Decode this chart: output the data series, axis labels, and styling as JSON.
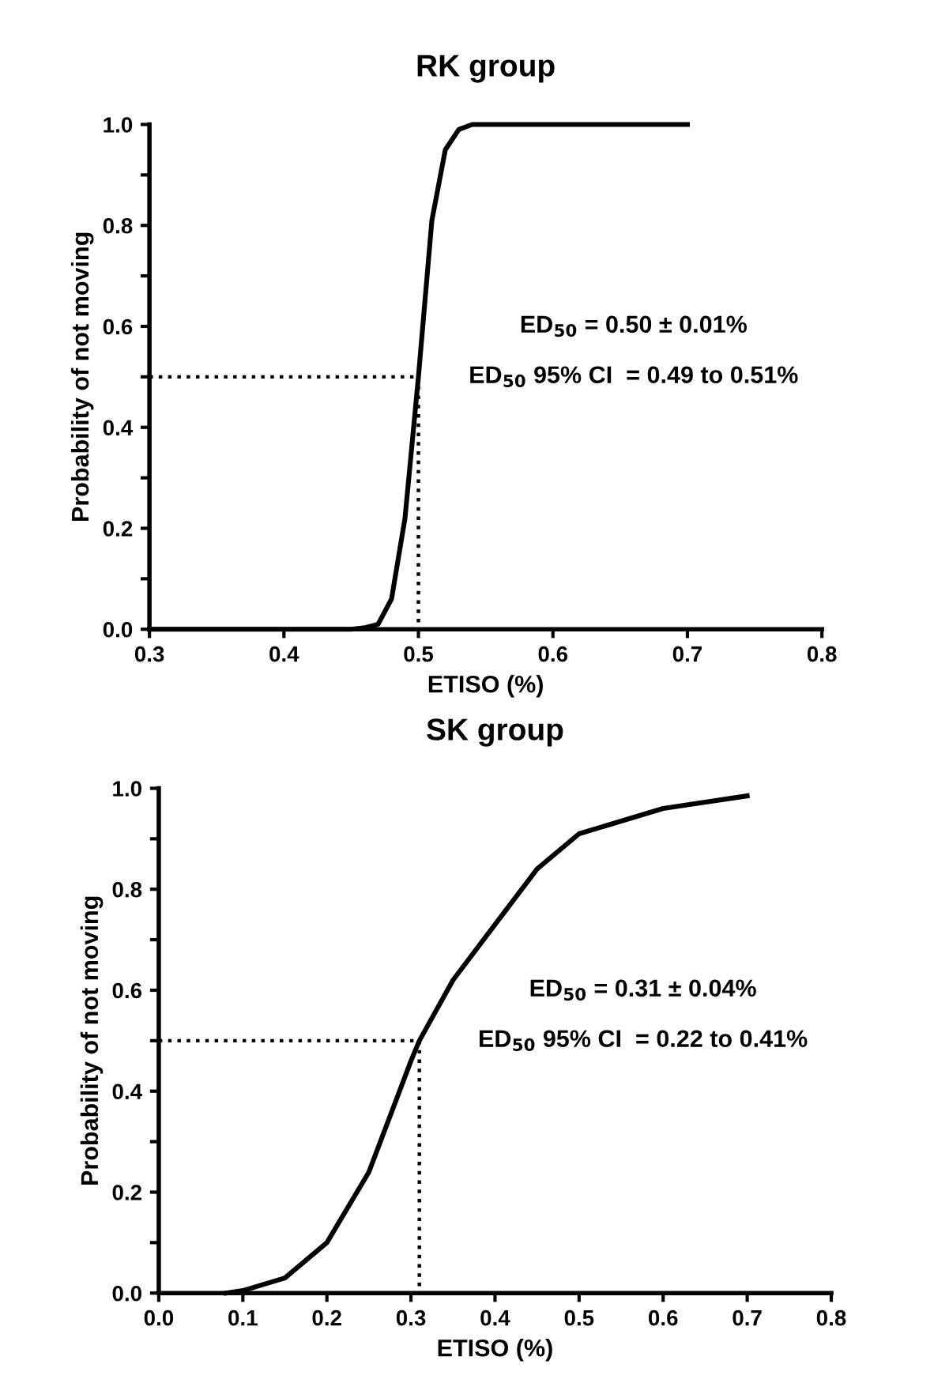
{
  "chart_data": [
    {
      "type": "line",
      "title": "RK group",
      "xlabel": "ETISO (%)",
      "ylabel": "Probability of not moving",
      "xlim": [
        0.3,
        0.8
      ],
      "xticks": [
        0.3,
        0.4,
        0.5,
        0.6,
        0.7,
        0.8
      ],
      "ylim": [
        0,
        1.0
      ],
      "yticks": [
        {
          "value": 0,
          "label": "0.0"
        },
        {
          "value": 0.1,
          "label": null
        },
        0.2,
        {
          "value": 0.3,
          "label": null
        },
        0.4,
        {
          "value": 0.5,
          "label": null
        },
        0.6,
        {
          "value": 0.7,
          "label": null
        },
        0.8,
        {
          "value": 0.9,
          "label": null
        },
        {
          "value": 1.0,
          "label": "1.0"
        }
      ],
      "grid": false,
      "legend": false,
      "annotations": [
        "ED$_{50}$ = 0.50 ± 0.01%",
        "ED$_{50}$ 95% CI  = 0.49 to 0.51%"
      ],
      "series": [
        {
          "color": "#000000",
          "line_style": "solid",
          "x": [
            0.3,
            0.45,
            0.46,
            0.47,
            0.48,
            0.49,
            0.5,
            0.51,
            0.52,
            0.53,
            0.54,
            0.55,
            0.7
          ],
          "values": [
            0,
            0,
            0.003,
            0.01,
            0.06,
            0.22,
            0.5,
            0.81,
            0.95,
            0.99,
            1.0,
            1.0,
            1.0
          ]
        },
        {
          "color": "#000000",
          "line_style": "dotted",
          "x": [
            0.3,
            0.5
          ],
          "values": [
            0.5,
            0.5
          ]
        },
        {
          "color": "#000000",
          "line_style": "dotted",
          "x": [
            0.5,
            0.5
          ],
          "values": [
            0.5,
            0
          ]
        }
      ]
    },
    {
      "type": "line",
      "title": "SK group",
      "xlabel": "ETISO (%)",
      "ylabel": "Probability of not moving",
      "xlim": [
        0,
        0.8
      ],
      "xticks": [
        {
          "value": 0,
          "label": "0.0"
        },
        0.1,
        0.2,
        0.3,
        0.4,
        0.5,
        0.6,
        0.7,
        0.8
      ],
      "ylim": [
        0,
        1.0
      ],
      "yticks": [
        {
          "value": 0,
          "label": "0.0"
        },
        {
          "value": 0.1,
          "label": null
        },
        0.2,
        {
          "value": 0.3,
          "label": null
        },
        0.4,
        {
          "value": 0.5,
          "label": null
        },
        0.6,
        {
          "value": 0.7,
          "label": null
        },
        0.8,
        {
          "value": 0.9,
          "label": null
        },
        {
          "value": 1.0,
          "label": "1.0"
        }
      ],
      "grid": false,
      "legend": false,
      "annotations": [
        "ED$_{50}$ = 0.31 ± 0.04%",
        "ED$_{50}$ 95% CI  = 0.22 to 0.41%"
      ],
      "series": [
        {
          "color": "#000000",
          "line_style": "solid",
          "x": [
            0.08,
            0.1,
            0.15,
            0.2,
            0.25,
            0.3,
            0.31,
            0.35,
            0.4,
            0.45,
            0.5,
            0.6,
            0.7
          ],
          "values": [
            0,
            0.005,
            0.03,
            0.1,
            0.24,
            0.46,
            0.5,
            0.62,
            0.73,
            0.84,
            0.91,
            0.96,
            0.985
          ]
        },
        {
          "color": "#000000",
          "line_style": "dotted",
          "x": [
            0,
            0.31
          ],
          "values": [
            0.5,
            0.5
          ]
        },
        {
          "color": "#000000",
          "line_style": "dotted",
          "x": [
            0.31,
            0.31
          ],
          "values": [
            0.5,
            0
          ]
        }
      ]
    }
  ]
}
